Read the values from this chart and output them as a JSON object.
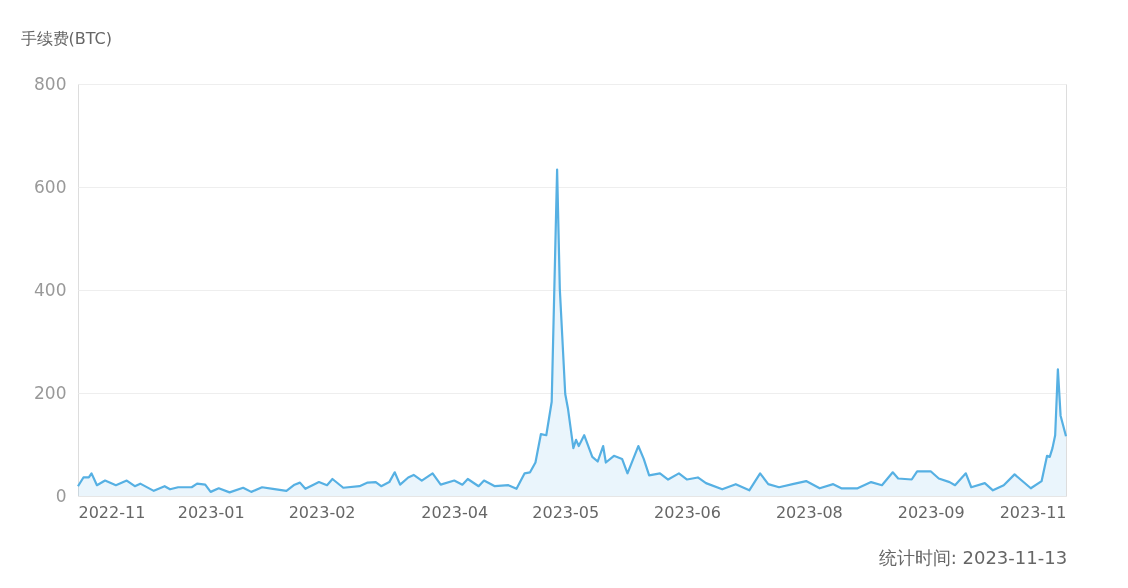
{
  "chart_data": {
    "type": "area",
    "ylabel": "手续费(BTC)",
    "annotations": [
      "统计时间: 2023-11-13"
    ],
    "x": [
      "2022-11-13",
      "2022-11-15",
      "2022-11-17",
      "2022-11-18",
      "2022-11-20",
      "2022-11-23",
      "2022-11-27",
      "2022-12-01",
      "2022-12-04",
      "2022-12-06",
      "2022-12-11",
      "2022-12-15",
      "2022-12-17",
      "2022-12-20",
      "2022-12-25",
      "2022-12-27",
      "2022-12-30",
      "2023-01-01",
      "2023-01-04",
      "2023-01-08",
      "2023-01-13",
      "2023-01-16",
      "2023-01-20",
      "2023-01-24",
      "2023-01-29",
      "2023-02-01",
      "2023-02-03",
      "2023-02-05",
      "2023-02-08",
      "2023-02-10",
      "2023-02-13",
      "2023-02-15",
      "2023-02-19",
      "2023-02-25",
      "2023-02-28",
      "2023-03-03",
      "2023-03-05",
      "2023-03-08",
      "2023-03-10",
      "2023-03-12",
      "2023-03-15",
      "2023-03-17",
      "2023-03-20",
      "2023-03-24",
      "2023-03-27",
      "2023-04-01",
      "2023-04-04",
      "2023-04-06",
      "2023-04-10",
      "2023-04-12",
      "2023-04-16",
      "2023-04-21",
      "2023-04-24",
      "2023-04-27",
      "2023-04-29",
      "2023-05-01",
      "2023-05-03",
      "2023-05-05",
      "2023-05-07",
      "2023-05-09",
      "2023-05-10",
      "2023-05-12",
      "2023-05-13",
      "2023-05-15",
      "2023-05-16",
      "2023-05-17",
      "2023-05-19",
      "2023-05-22",
      "2023-05-24",
      "2023-05-26",
      "2023-05-27",
      "2023-05-30",
      "2023-06-02",
      "2023-06-04",
      "2023-06-08",
      "2023-06-10",
      "2023-06-12",
      "2023-06-16",
      "2023-06-19",
      "2023-06-23",
      "2023-06-26",
      "2023-06-30",
      "2023-07-03",
      "2023-07-09",
      "2023-07-14",
      "2023-07-19",
      "2023-07-23",
      "2023-07-26",
      "2023-07-30",
      "2023-08-04",
      "2023-08-09",
      "2023-08-14",
      "2023-08-19",
      "2023-08-22",
      "2023-08-28",
      "2023-09-02",
      "2023-09-06",
      "2023-09-10",
      "2023-09-12",
      "2023-09-17",
      "2023-09-19",
      "2023-09-24",
      "2023-09-27",
      "2023-10-01",
      "2023-10-03",
      "2023-10-07",
      "2023-10-09",
      "2023-10-14",
      "2023-10-17",
      "2023-10-21",
      "2023-10-25",
      "2023-10-31",
      "2023-11-04",
      "2023-11-06",
      "2023-11-07",
      "2023-11-08",
      "2023-11-09",
      "2023-11-10",
      "2023-11-11",
      "2023-11-13"
    ],
    "series": [
      {
        "color": "#56b0e3",
        "values": [
          19,
          36,
          36,
          44,
          21,
          30,
          21,
          30,
          19,
          24,
          10,
          19,
          13,
          17,
          17,
          24,
          22,
          8,
          15,
          7,
          16,
          8,
          17,
          14,
          10,
          22,
          26,
          14,
          22,
          27,
          21,
          33,
          16,
          19,
          26,
          27,
          19,
          27,
          46,
          22,
          36,
          41,
          30,
          44,
          22,
          30,
          22,
          33,
          19,
          30,
          19,
          21,
          14,
          44,
          46,
          65,
          120,
          118,
          183,
          634,
          402,
          198,
          170,
          93,
          109,
          97,
          118,
          76,
          67,
          97,
          65,
          78,
          72,
          44,
          97,
          72,
          40,
          44,
          32,
          44,
          32,
          36,
          25,
          13,
          23,
          11,
          44,
          23,
          17,
          23,
          29,
          15,
          23,
          15,
          15,
          27,
          21,
          46,
          34,
          32,
          48,
          48,
          34,
          27,
          21,
          44,
          17,
          25,
          11,
          21,
          42,
          15,
          29,
          78,
          76,
          93,
          118,
          246,
          156,
          116
        ]
      }
    ],
    "xlim": [
      "2022-11-13",
      "2023-11-13"
    ],
    "xticks": [
      {
        "value": "2022-11-13",
        "label": "2022-11"
      },
      {
        "value": "2023-01-01",
        "label": "2023-01"
      },
      {
        "value": "2023-02-11",
        "label": "2023-02"
      },
      {
        "value": "2023-04-01",
        "label": "2023-04"
      },
      {
        "value": "2023-05-12",
        "label": "2023-05"
      },
      {
        "value": "2023-06-26",
        "label": "2023-06"
      },
      {
        "value": "2023-08-10",
        "label": "2023-08"
      },
      {
        "value": "2023-09-24",
        "label": "2023-09"
      },
      {
        "value": "2023-11-13",
        "label": "2023-11"
      }
    ],
    "ylim": [
      0,
      800
    ],
    "yticks": [
      0,
      200,
      400,
      600,
      800
    ],
    "grid": "y"
  }
}
